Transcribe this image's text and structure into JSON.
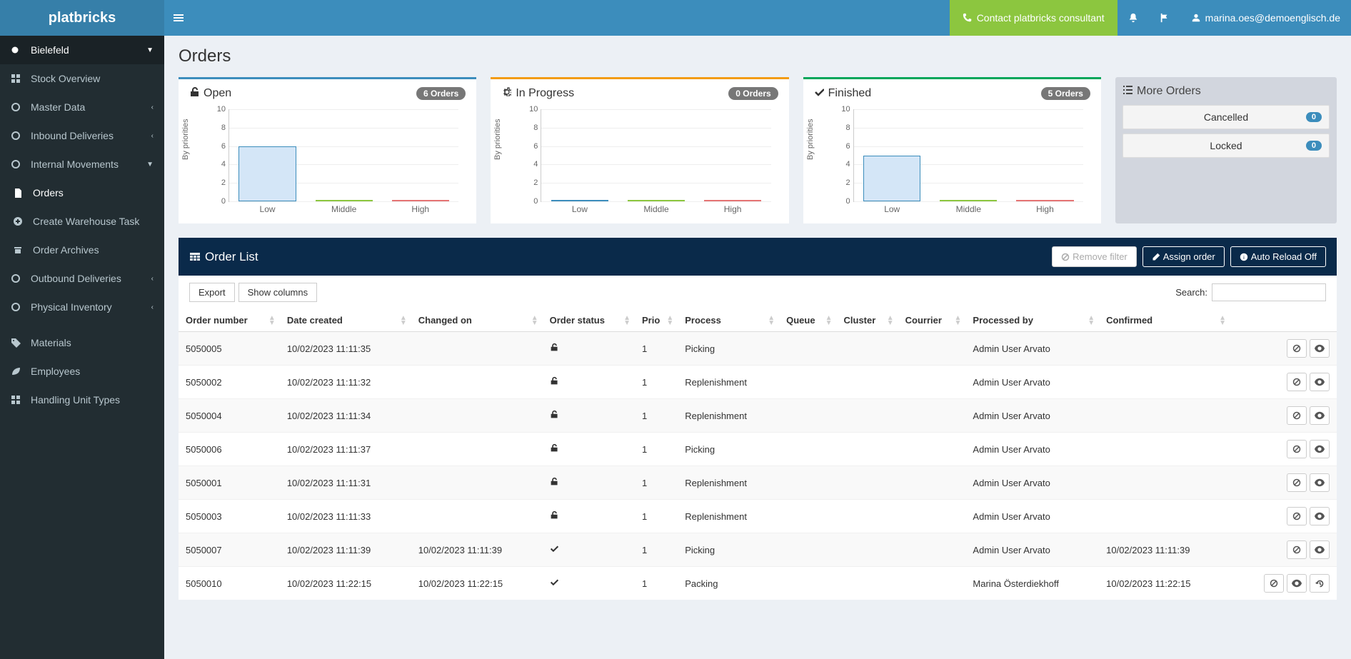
{
  "brand": "platbricks",
  "contact_label": "Contact platbricks consultant",
  "user_email": "marina.oes@demoenglisch.de",
  "sidebar": {
    "location": "Bielefeld",
    "items": [
      {
        "label": "Stock Overview",
        "icon": "grid"
      },
      {
        "label": "Master Data",
        "icon": "circle",
        "expandable": true
      },
      {
        "label": "Inbound Deliveries",
        "icon": "circle",
        "expandable": true
      },
      {
        "label": "Internal Movements",
        "icon": "circle",
        "expandable": true,
        "expanded": true,
        "children": [
          {
            "label": "Orders",
            "icon": "file",
            "active": true
          },
          {
            "label": "Create Warehouse Task",
            "icon": "plus"
          },
          {
            "label": "Order Archives",
            "icon": "archive"
          }
        ]
      },
      {
        "label": "Outbound Deliveries",
        "icon": "circle",
        "expandable": true
      },
      {
        "label": "Physical Inventory",
        "icon": "circle",
        "expandable": true
      }
    ],
    "items2": [
      {
        "label": "Materials",
        "icon": "tag"
      },
      {
        "label": "Employees",
        "icon": "leaf"
      },
      {
        "label": "Handling Unit Types",
        "icon": "grid"
      }
    ]
  },
  "page_title": "Orders",
  "charts": {
    "y_label": "By priorities",
    "ylim": [
      0,
      10
    ],
    "ytick_step": 2,
    "categories": [
      "Low",
      "Middle",
      "High"
    ],
    "bar_colors": [
      "#d4e6f7",
      "#e8f5e0",
      "#fde4e4"
    ],
    "bar_borders": [
      "#3c8dbc",
      "#8cc63f",
      "#e57373"
    ],
    "cards": [
      {
        "title": "Open",
        "icon": "unlock",
        "count_label": "6 Orders",
        "border": "#3c8dbc",
        "values": [
          6,
          0,
          0
        ]
      },
      {
        "title": "In Progress",
        "icon": "gear",
        "count_label": "0 Orders",
        "border": "#f39c12",
        "values": [
          0,
          0,
          0
        ]
      },
      {
        "title": "Finished",
        "icon": "check",
        "count_label": "5 Orders",
        "border": "#00a65a",
        "values": [
          5,
          0,
          0
        ]
      }
    ]
  },
  "more_orders": {
    "title": "More Orders",
    "links": [
      {
        "label": "Cancelled",
        "count": "0"
      },
      {
        "label": "Locked",
        "count": "0"
      }
    ]
  },
  "order_list": {
    "title": "Order List",
    "remove_filter": "Remove filter",
    "assign_order": "Assign order",
    "auto_reload": "Auto Reload Off",
    "export": "Export",
    "show_columns": "Show columns",
    "search_label": "Search:",
    "columns": [
      "Order number",
      "Date created",
      "Changed on",
      "Order status",
      "Prio",
      "Process",
      "Queue",
      "Cluster",
      "Courrier",
      "Processed by",
      "Confirmed",
      ""
    ],
    "rows": [
      {
        "order": "5050005",
        "created": "10/02/2023 11:11:35",
        "changed": "",
        "status": "open",
        "prio": "1",
        "process": "Picking",
        "queue": "",
        "cluster": "",
        "courrier": "",
        "processed": "Admin User Arvato",
        "confirmed": "",
        "extra": false
      },
      {
        "order": "5050002",
        "created": "10/02/2023 11:11:32",
        "changed": "",
        "status": "open",
        "prio": "1",
        "process": "Replenishment",
        "queue": "",
        "cluster": "",
        "courrier": "",
        "processed": "Admin User Arvato",
        "confirmed": "",
        "extra": false
      },
      {
        "order": "5050004",
        "created": "10/02/2023 11:11:34",
        "changed": "",
        "status": "open",
        "prio": "1",
        "process": "Replenishment",
        "queue": "",
        "cluster": "",
        "courrier": "",
        "processed": "Admin User Arvato",
        "confirmed": "",
        "extra": false
      },
      {
        "order": "5050006",
        "created": "10/02/2023 11:11:37",
        "changed": "",
        "status": "open",
        "prio": "1",
        "process": "Picking",
        "queue": "",
        "cluster": "",
        "courrier": "",
        "processed": "Admin User Arvato",
        "confirmed": "",
        "extra": false
      },
      {
        "order": "5050001",
        "created": "10/02/2023 11:11:31",
        "changed": "",
        "status": "open",
        "prio": "1",
        "process": "Replenishment",
        "queue": "",
        "cluster": "",
        "courrier": "",
        "processed": "Admin User Arvato",
        "confirmed": "",
        "extra": false
      },
      {
        "order": "5050003",
        "created": "10/02/2023 11:11:33",
        "changed": "",
        "status": "open",
        "prio": "1",
        "process": "Replenishment",
        "queue": "",
        "cluster": "",
        "courrier": "",
        "processed": "Admin User Arvato",
        "confirmed": "",
        "extra": false
      },
      {
        "order": "5050007",
        "created": "10/02/2023 11:11:39",
        "changed": "10/02/2023 11:11:39",
        "status": "done",
        "prio": "1",
        "process": "Picking",
        "queue": "",
        "cluster": "",
        "courrier": "",
        "processed": "Admin User Arvato",
        "confirmed": "10/02/2023 11:11:39",
        "extra": false
      },
      {
        "order": "5050010",
        "created": "10/02/2023 11:22:15",
        "changed": "10/02/2023 11:22:15",
        "status": "done",
        "prio": "1",
        "process": "Packing",
        "queue": "",
        "cluster": "",
        "courrier": "",
        "processed": "Marina Österdiekhoff",
        "confirmed": "10/02/2023 11:22:15",
        "extra": true
      }
    ]
  }
}
